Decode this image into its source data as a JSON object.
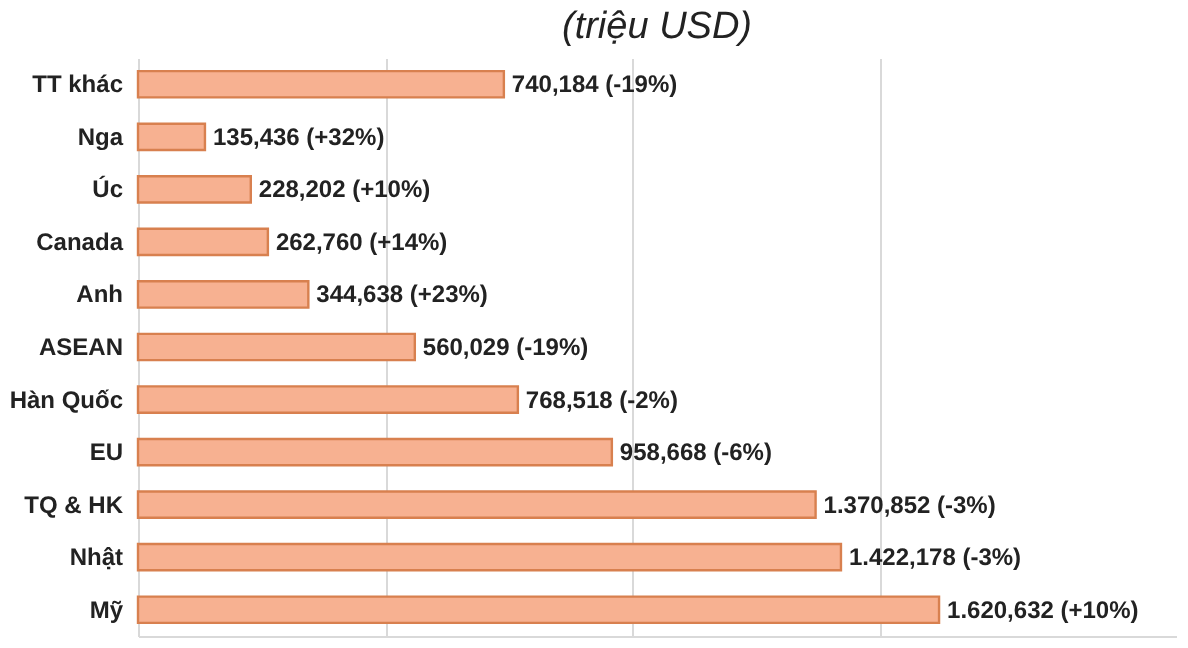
{
  "chart_data": {
    "type": "bar",
    "orientation": "horizontal",
    "title": "(triệu USD)",
    "categories": [
      "TT khác",
      "Nga",
      "Úc",
      "Canada",
      "Anh",
      "ASEAN",
      "Hàn Quốc",
      "EU",
      "TQ & HK",
      "Nhật",
      "Mỹ"
    ],
    "values": [
      740.184,
      135.436,
      228.202,
      262.76,
      344.638,
      560.029,
      768.518,
      958.668,
      1370.852,
      1422.178,
      1620.632
    ],
    "value_labels": [
      "740,184 (-19%)",
      "135,436 (+32%)",
      "228,202 (+10%)",
      "262,760 (+14%)",
      "344,638 (+23%)",
      "560,029 (-19%)",
      "768,518 (-2%)",
      "958,668 (-6%)",
      "1.370,852 (-3%)",
      "1.422,178 (-3%)",
      "1.620,632 (+10%)"
    ],
    "color": "#f7b191",
    "xlim": [
      0,
      2100
    ],
    "xticks": [
      {
        "value": 0,
        "label": null
      },
      {
        "value": 500,
        "label": null
      },
      {
        "value": 1000,
        "label": null
      },
      {
        "value": 1500,
        "label": null
      }
    ],
    "grid": "x",
    "tick_labels": "y"
  }
}
